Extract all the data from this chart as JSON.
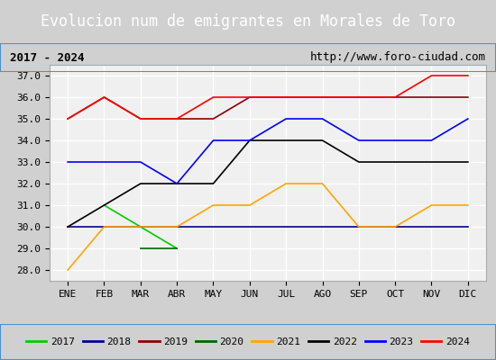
{
  "title": "Evolucion num de emigrantes en Morales de Toro",
  "subtitle_left": "2017 - 2024",
  "subtitle_right": "http://www.foro-ciudad.com",
  "xlabel": "",
  "ylabel": "",
  "ylim": [
    27.5,
    37.5
  ],
  "yticks": [
    28.0,
    29.0,
    30.0,
    31.0,
    32.0,
    33.0,
    34.0,
    35.0,
    36.0,
    37.0
  ],
  "months": [
    "ENE",
    "FEB",
    "MAR",
    "ABR",
    "MAY",
    "JUN",
    "JUL",
    "AGO",
    "SEP",
    "OCT",
    "NOV",
    "DIC"
  ],
  "series": {
    "2017": {
      "color": "#00cc00",
      "values": [
        null,
        31.0,
        30.0,
        29.0,
        null,
        null,
        null,
        null,
        null,
        null,
        null,
        null
      ]
    },
    "2018": {
      "color": "#00008b",
      "values": [
        30.0,
        30.0,
        30.0,
        30.0,
        30.0,
        30.0,
        30.0,
        30.0,
        30.0,
        30.0,
        30.0,
        30.0
      ]
    },
    "2019": {
      "color": "#8b0000",
      "values": [
        35.0,
        36.0,
        35.0,
        35.0,
        35.0,
        36.0,
        36.0,
        36.0,
        36.0,
        36.0,
        36.0,
        36.0
      ]
    },
    "2020": {
      "color": "#006400",
      "values": [
        null,
        null,
        29.0,
        29.0,
        null,
        null,
        null,
        null,
        null,
        null,
        null,
        null
      ]
    },
    "2021": {
      "color": "#ffa500",
      "values": [
        28.0,
        30.0,
        30.0,
        30.0,
        31.0,
        31.0,
        32.0,
        32.0,
        30.0,
        30.0,
        31.0,
        31.0
      ]
    },
    "2022": {
      "color": "#000000",
      "values": [
        30.0,
        31.0,
        32.0,
        32.0,
        32.0,
        34.0,
        34.0,
        34.0,
        33.0,
        33.0,
        33.0,
        33.0
      ]
    },
    "2023": {
      "color": "#0000ff",
      "values": [
        33.0,
        33.0,
        33.0,
        32.0,
        34.0,
        34.0,
        35.0,
        35.0,
        34.0,
        34.0,
        34.0,
        35.0
      ]
    },
    "2024": {
      "color": "#ff0000",
      "values": [
        35.0,
        36.0,
        35.0,
        35.0,
        36.0,
        36.0,
        36.0,
        36.0,
        36.0,
        36.0,
        37.0,
        37.0
      ]
    }
  },
  "title_bg_color": "#4a90d9",
  "title_text_color": "#ffffff",
  "subtitle_bg_color": "#e8e8e8",
  "plot_bg_color": "#f0f0f0",
  "grid_color": "#ffffff",
  "border_color": "#4a90d9"
}
